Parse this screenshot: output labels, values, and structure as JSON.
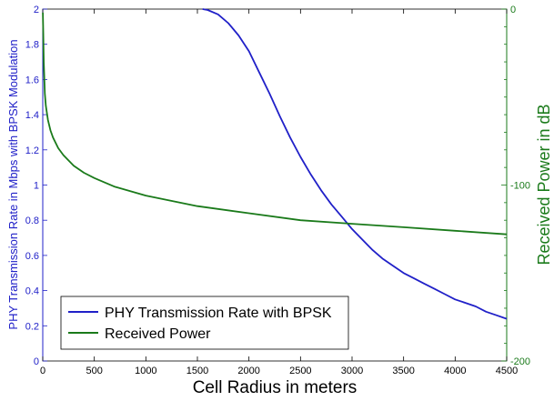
{
  "chart_data": {
    "type": "line",
    "title": "",
    "xlabel": "Cell Radius in meters",
    "ylabel_left": "PHY Transmission Rate in Mbps with BPSK Modulation",
    "ylabel_right": "Received Power in dB",
    "xlim": [
      0,
      4500
    ],
    "ylim_left": [
      0,
      2
    ],
    "ylim_right": [
      -200,
      0
    ],
    "xticks": [
      "0",
      "500",
      "1000",
      "1500",
      "2000",
      "2500",
      "3000",
      "3500",
      "4000",
      "4500"
    ],
    "yticks_left": [
      "0",
      "0.2",
      "0.4",
      "0.6",
      "0.8",
      "1",
      "1.2",
      "1.4",
      "1.6",
      "1.8",
      "2"
    ],
    "yticks_right": [
      "0",
      "-100",
      "-200"
    ],
    "grid": false,
    "legend_position": "bottom-left",
    "series": [
      {
        "name": "PHY Transmission Rate with BPSK",
        "axis": "left",
        "color": "#2020c8",
        "x": [
          1550,
          1600,
          1700,
          1800,
          1900,
          2000,
          2100,
          2200,
          2300,
          2400,
          2500,
          2600,
          2700,
          2800,
          2900,
          3000,
          3100,
          3200,
          3300,
          3400,
          3500,
          3600,
          3700,
          3800,
          3900,
          4000,
          4100,
          4200,
          4300,
          4400,
          4500
        ],
        "values": [
          2.0,
          1.995,
          1.97,
          1.92,
          1.85,
          1.76,
          1.64,
          1.52,
          1.39,
          1.27,
          1.16,
          1.06,
          0.97,
          0.89,
          0.82,
          0.75,
          0.69,
          0.63,
          0.58,
          0.54,
          0.5,
          0.47,
          0.44,
          0.41,
          0.38,
          0.35,
          0.33,
          0.31,
          0.28,
          0.26,
          0.24
        ]
      },
      {
        "name": "Received Power",
        "axis": "right",
        "color": "#1a7a1a",
        "x": [
          1,
          5,
          10,
          20,
          30,
          50,
          75,
          100,
          150,
          200,
          300,
          400,
          500,
          700,
          1000,
          1500,
          2000,
          2500,
          3000,
          3500,
          4000,
          4500
        ],
        "values": [
          -2,
          -15,
          -30,
          -48,
          -55,
          -63,
          -69,
          -73,
          -79,
          -83,
          -89,
          -93,
          -96,
          -101,
          -106,
          -112,
          -116,
          -120,
          -122,
          -124,
          -126,
          -128
        ]
      }
    ]
  }
}
